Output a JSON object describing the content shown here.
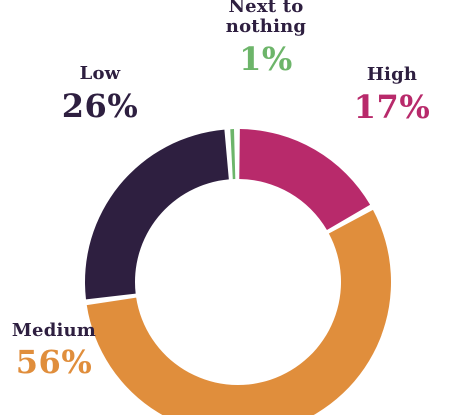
{
  "chart_data": {
    "type": "pie",
    "title": "",
    "categories": [
      "Next to nothing",
      "High",
      "Medium",
      "Low"
    ],
    "values": [
      1,
      17,
      56,
      26
    ],
    "value_labels": [
      "1%",
      "17%",
      "56%",
      "26%"
    ],
    "display_names": [
      [
        "Next to",
        "nothing"
      ],
      [
        "High"
      ],
      [
        "Medium"
      ],
      [
        "Low"
      ]
    ],
    "colors": [
      "#6db56a",
      "#b82a6b",
      "#e08e3c",
      "#2e1f40"
    ],
    "style": "donut",
    "legend": "none"
  }
}
